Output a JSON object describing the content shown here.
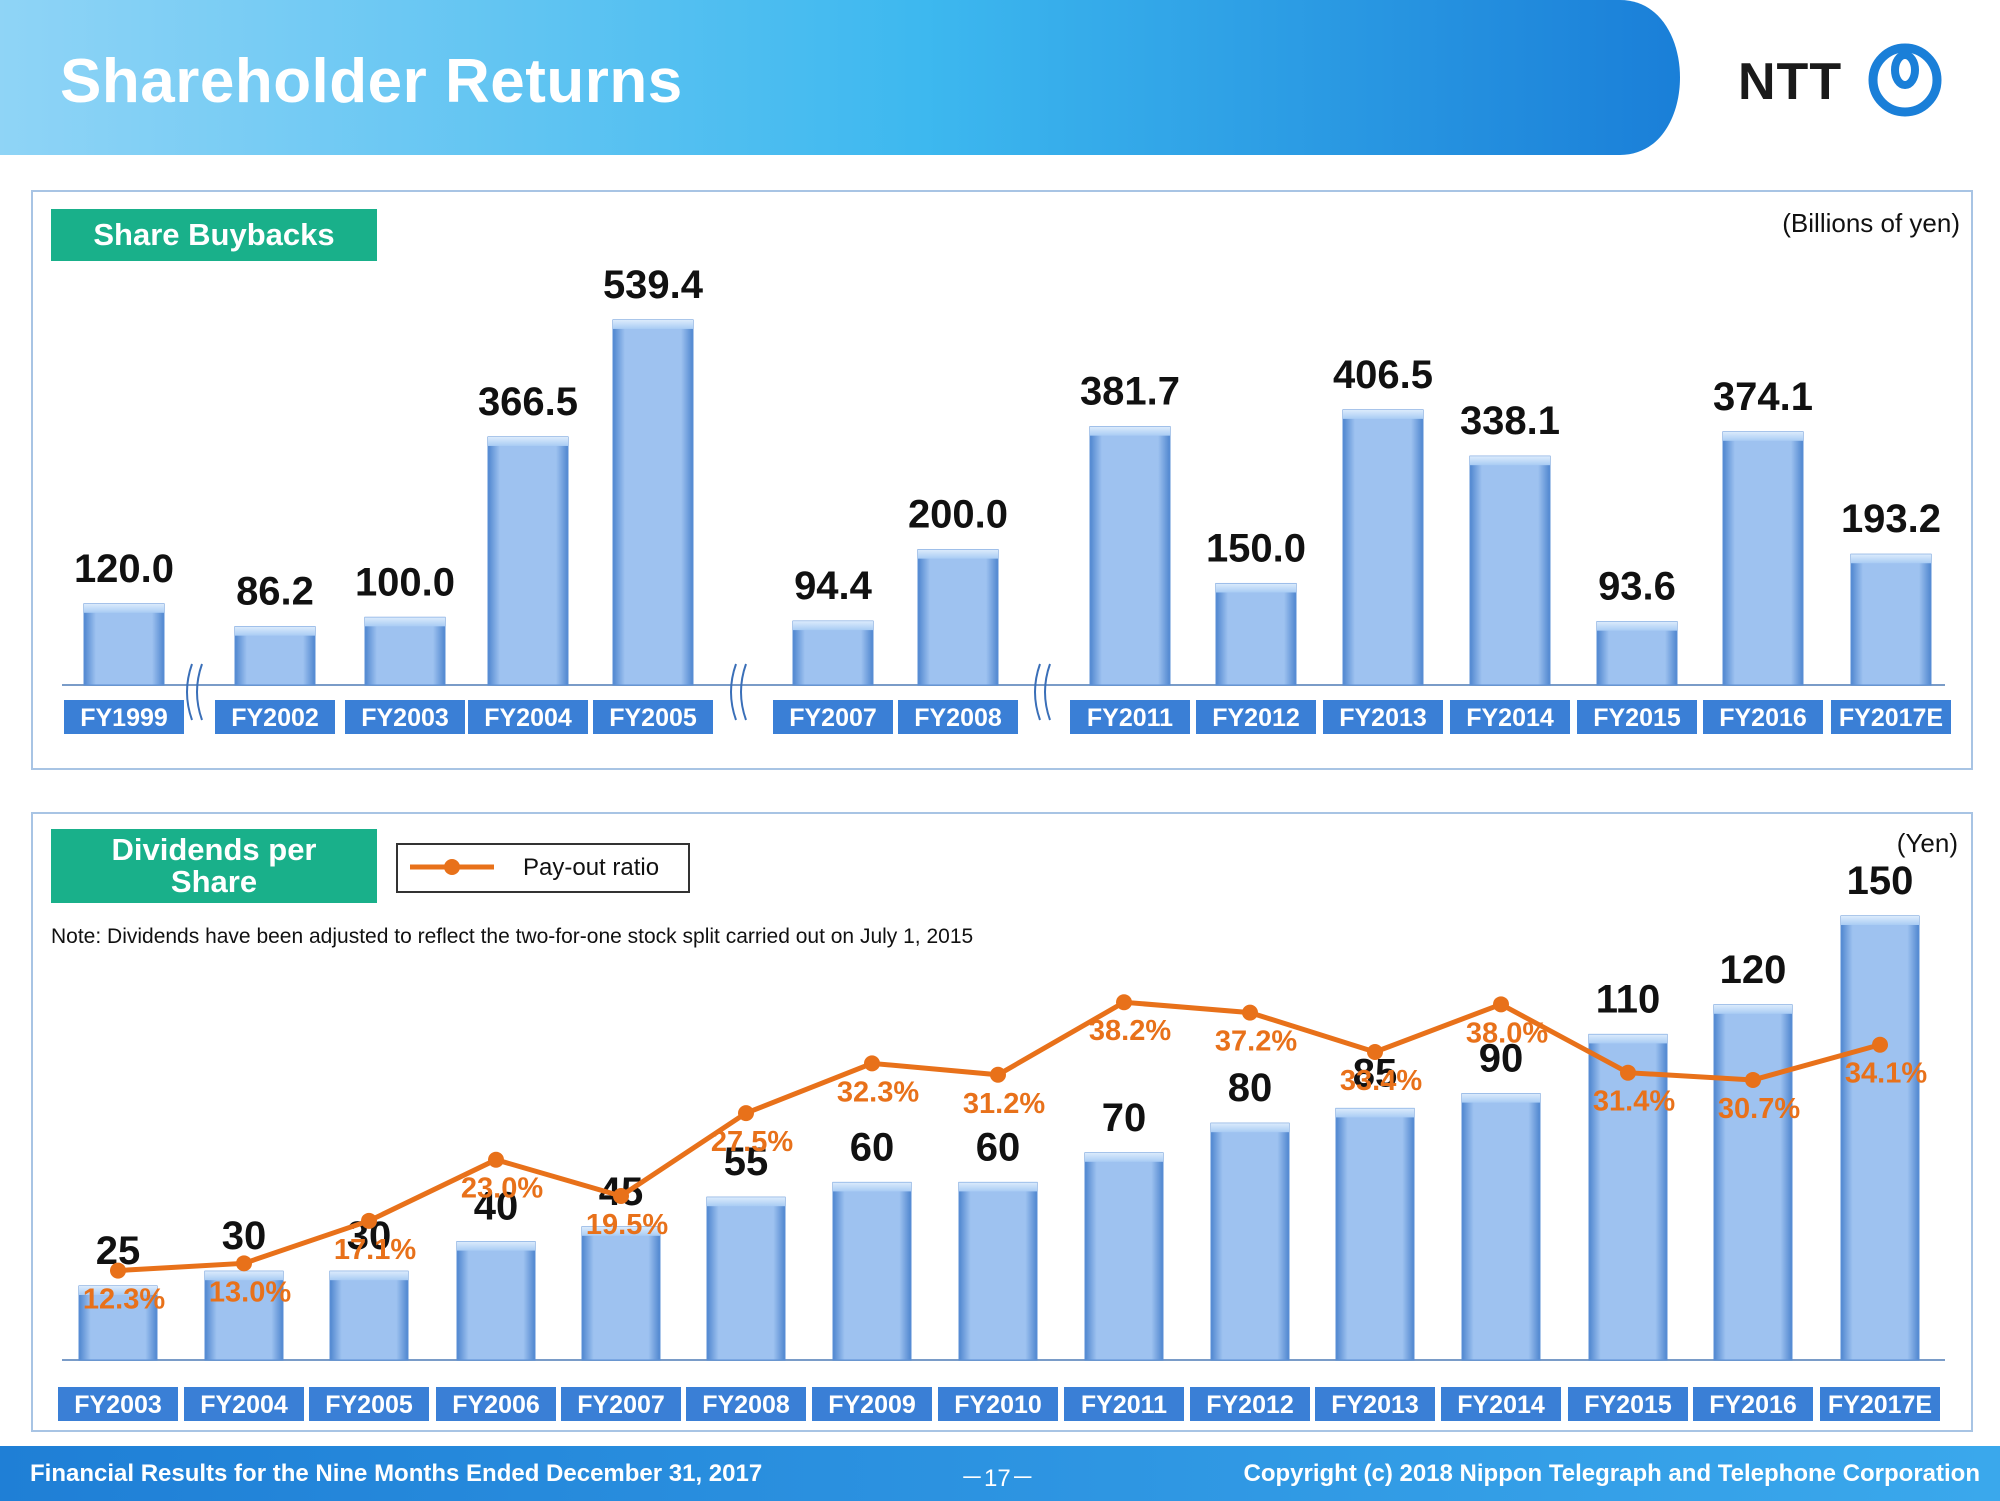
{
  "header": {
    "title": "Shareholder Returns",
    "logo_text": "NTT"
  },
  "colors": {
    "accent_green": "#19b08a",
    "bar_blue": "#8fb8ea",
    "line_orange": "#e8711a",
    "axis_label_blue": "#3a7fd6"
  },
  "buybacks": {
    "label": "Share Buybacks",
    "unit": "(Billions of yen)"
  },
  "dividends": {
    "label_line1": "Dividends per",
    "label_line2": "Share",
    "unit": "(Yen)",
    "legend": "Pay-out ratio",
    "note": "Note: Dividends have been adjusted to reflect the two-for-one stock split carried out on July 1, 2015"
  },
  "chart_data": [
    {
      "type": "bar",
      "title": "Share Buybacks",
      "unit": "(Billions of yen)",
      "categories": [
        "FY1999",
        "FY2002",
        "FY2003",
        "FY2004",
        "FY2005",
        "FY2007",
        "FY2008",
        "FY2011",
        "FY2012",
        "FY2013",
        "FY2014",
        "FY2015",
        "FY2016",
        "FY2017E"
      ],
      "values": [
        120.0,
        86.2,
        100.0,
        366.5,
        539.4,
        94.4,
        200.0,
        381.7,
        150.0,
        406.5,
        338.1,
        93.6,
        374.1,
        193.2
      ],
      "value_labels": [
        "120.0",
        "86.2",
        "100.0",
        "366.5",
        "539.4",
        "94.4",
        "200.0",
        "381.7",
        "150.0",
        "406.5",
        "338.1",
        "93.6",
        "374.1",
        "193.2"
      ],
      "axis_breaks_after": [
        "FY1999",
        "FY2005",
        "FY2008"
      ]
    },
    {
      "type": "bar",
      "title": "Dividends per Share",
      "unit": "(Yen)",
      "categories": [
        "FY2003",
        "FY2004",
        "FY2005",
        "FY2006",
        "FY2007",
        "FY2008",
        "FY2009",
        "FY2010",
        "FY2011",
        "FY2012",
        "FY2013",
        "FY2014",
        "FY2015",
        "FY2016",
        "FY2017E"
      ],
      "values": [
        25,
        30,
        30,
        40,
        45,
        55,
        60,
        60,
        70,
        80,
        85,
        90,
        110,
        120,
        150
      ],
      "value_labels": [
        "25",
        "30",
        "30",
        "40",
        "45",
        "55",
        "60",
        "60",
        "70",
        "80",
        "85",
        "90",
        "110",
        "120",
        "150"
      ],
      "line_series": {
        "name": "Pay-out ratio",
        "values": [
          12.3,
          13.0,
          17.1,
          23.0,
          19.5,
          27.5,
          32.3,
          31.2,
          38.2,
          37.2,
          33.4,
          38.0,
          31.4,
          30.7,
          34.1
        ],
        "labels": [
          "12.3%",
          "13.0%",
          "17.1%",
          "23.0%",
          "19.5%",
          "27.5%",
          "32.3%",
          "31.2%",
          "38.2%",
          "37.2%",
          "33.4%",
          "38.0%",
          "31.4%",
          "30.7%",
          "34.1%"
        ]
      }
    }
  ],
  "footer": {
    "left": "Financial Results for the Nine Months Ended December 31, 2017",
    "page": "－17－",
    "right": "Copyright (c) 2018  Nippon Telegraph and Telephone Corporation"
  }
}
